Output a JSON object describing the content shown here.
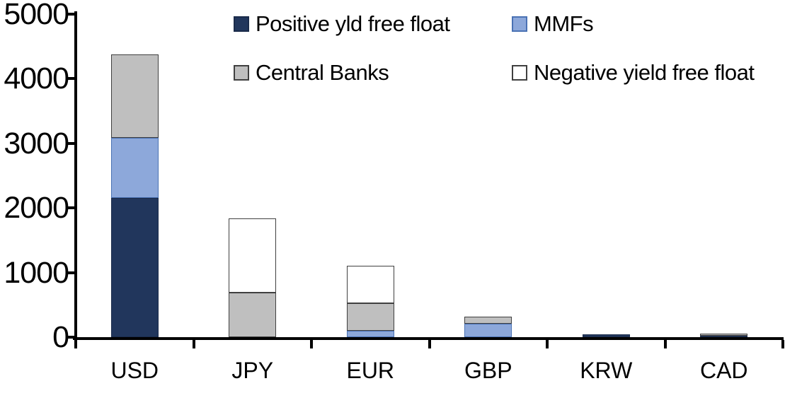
{
  "chart_data": {
    "type": "bar",
    "stacked": true,
    "title": "",
    "xlabel": "",
    "ylabel": "",
    "categories": [
      "USD",
      "JPY",
      "EUR",
      "GBP",
      "KRW",
      "CAD"
    ],
    "series": [
      {
        "name": "Positive yld free float",
        "color": "#21365C",
        "border_color": "#1A2B4A",
        "values": [
          2150,
          0,
          0,
          0,
          40,
          25
        ]
      },
      {
        "name": "MMFs",
        "color": "#8DA8DA",
        "border_color": "#4A72B4",
        "values": [
          930,
          0,
          100,
          210,
          0,
          0
        ]
      },
      {
        "name": "Central Banks",
        "color": "#BFBFBF",
        "border_color": "#404040",
        "values": [
          1300,
          690,
          430,
          105,
          0,
          35
        ]
      },
      {
        "name": "Negative yield free float",
        "color": "#FFFFFF",
        "border_color": "#404040",
        "values": [
          0,
          1150,
          570,
          0,
          0,
          0
        ]
      }
    ],
    "category_totals": [
      4380,
      1840,
      1100,
      315,
      40,
      60
    ],
    "ylim": [
      0,
      5000
    ],
    "ytick_step": 1000,
    "yticks": [
      0,
      1000,
      2000,
      3000,
      4000,
      5000
    ],
    "grid": false,
    "legend_position": "top",
    "axis_color": "#000000",
    "background_color": "#FFFFFF"
  }
}
